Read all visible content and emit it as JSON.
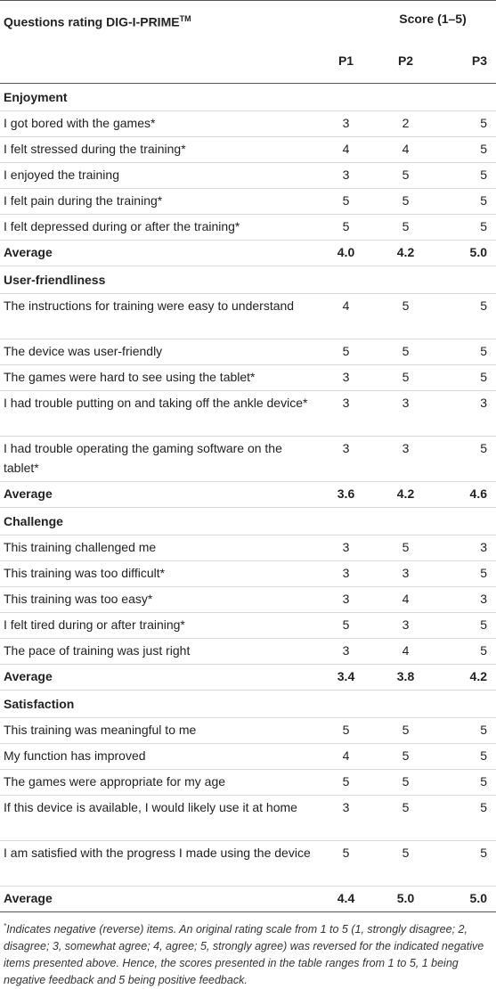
{
  "header": {
    "title": "Questions rating DIG-I-PRIME",
    "title_sup": "TM",
    "score_label": "Score (1–5)",
    "participants": [
      "P1",
      "P2",
      "P3"
    ]
  },
  "sections": [
    {
      "name": "Enjoyment",
      "rows": [
        {
          "q": "I got bored with the games*",
          "v": [
            "3",
            "2",
            "5"
          ]
        },
        {
          "q": "I felt stressed during the training*",
          "v": [
            "4",
            "4",
            "5"
          ]
        },
        {
          "q": "I enjoyed the training",
          "v": [
            "3",
            "5",
            "5"
          ]
        },
        {
          "q": "I felt pain during the training*",
          "v": [
            "5",
            "5",
            "5"
          ]
        },
        {
          "q": "I felt depressed during or after the training*",
          "v": [
            "5",
            "5",
            "5"
          ]
        }
      ],
      "avg_label": "Average",
      "avg": [
        "4.0",
        "4.2",
        "5.0"
      ]
    },
    {
      "name": "User-friendliness",
      "rows": [
        {
          "q": "The instructions for training were easy to understand",
          "v": [
            "4",
            "5",
            "5"
          ]
        },
        {
          "q": "The device was user-friendly",
          "v": [
            "5",
            "5",
            "5"
          ]
        },
        {
          "q": "The games were hard to see using the tablet*",
          "v": [
            "3",
            "5",
            "5"
          ]
        },
        {
          "q": "I had trouble putting on and taking off the ankle device*",
          "v": [
            "3",
            "3",
            "3"
          ]
        },
        {
          "q": "I had trouble operating the gaming software on the tablet*",
          "v": [
            "3",
            "3",
            "5"
          ]
        }
      ],
      "avg_label": "Average",
      "avg": [
        "3.6",
        "4.2",
        "4.6"
      ]
    },
    {
      "name": "Challenge",
      "rows": [
        {
          "q": "This training challenged me",
          "v": [
            "3",
            "5",
            "3"
          ]
        },
        {
          "q": "This training was too difficult*",
          "v": [
            "3",
            "3",
            "5"
          ]
        },
        {
          "q": "This training was too easy*",
          "v": [
            "3",
            "4",
            "3"
          ]
        },
        {
          "q": "I felt tired during or after training*",
          "v": [
            "5",
            "3",
            "5"
          ]
        },
        {
          "q": "The pace of training was just right",
          "v": [
            "3",
            "4",
            "5"
          ]
        }
      ],
      "avg_label": "Average",
      "avg": [
        "3.4",
        "3.8",
        "4.2"
      ]
    },
    {
      "name": "Satisfaction",
      "rows": [
        {
          "q": "This training was meaningful to me",
          "v": [
            "5",
            "5",
            "5"
          ]
        },
        {
          "q": "My function has improved",
          "v": [
            "4",
            "5",
            "5"
          ]
        },
        {
          "q": "The games were appropriate for my age",
          "v": [
            "5",
            "5",
            "5"
          ]
        },
        {
          "q": "If this device is available, I would likely use it at home",
          "v": [
            "3",
            "5",
            "5"
          ]
        },
        {
          "q": "I am satisfied with the progress I made using the device",
          "v": [
            "5",
            "5",
            "5"
          ]
        }
      ],
      "avg_label": "Average",
      "avg": [
        "4.4",
        "5.0",
        "5.0"
      ]
    }
  ],
  "footnote": {
    "marker": "*",
    "text": "Indicates negative (reverse) items. An original rating scale from 1 to 5 (1, strongly disagree; 2, disagree; 3, somewhat agree; 4, agree; 5, strongly agree) was reversed for the indicated negative items presented above. Hence, the scores presented in the table ranges from 1 to 5, 1 being negative feedback and 5 being positive feedback."
  }
}
